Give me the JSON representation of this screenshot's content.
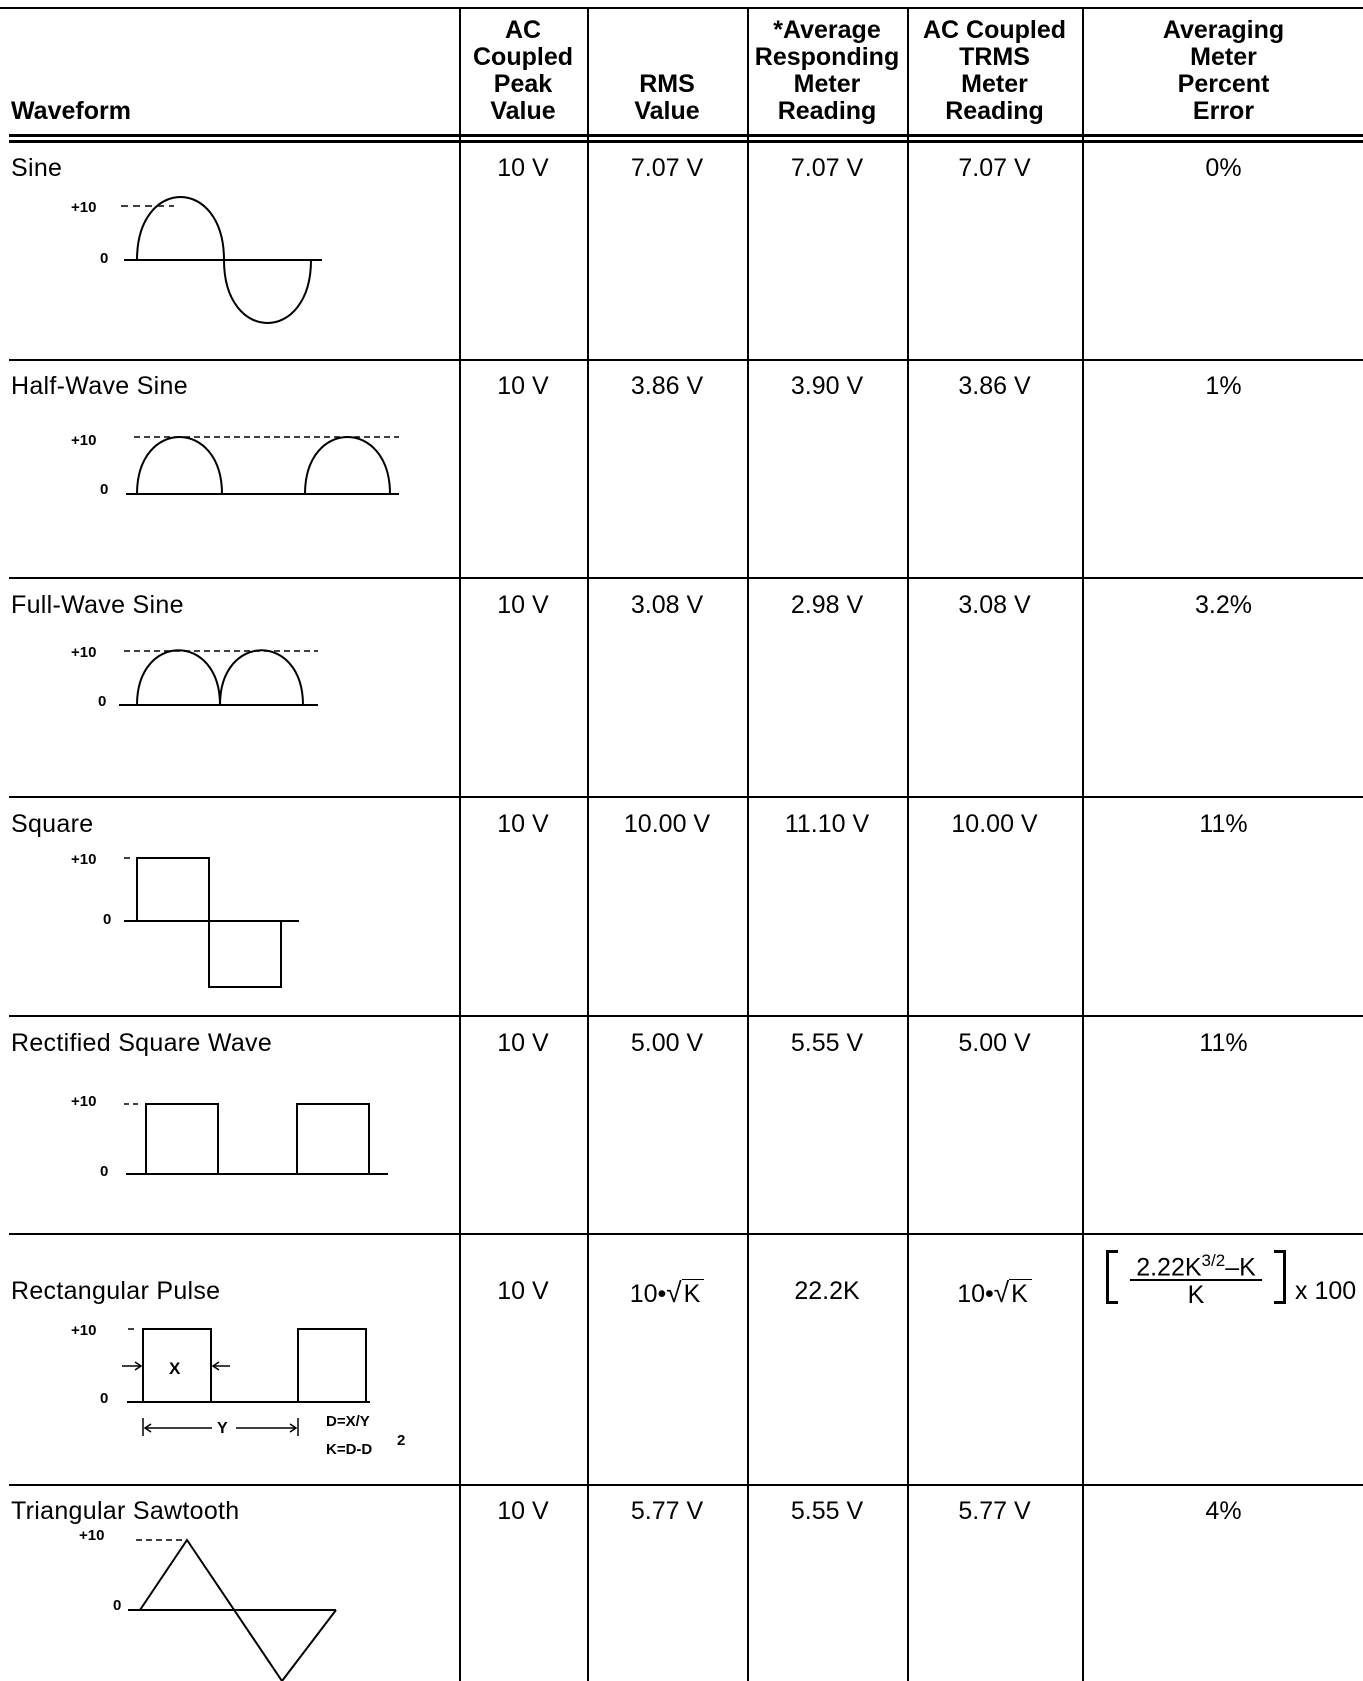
{
  "headers": {
    "waveform": "Waveform",
    "peak": [
      "AC",
      "Coupled",
      "Peak",
      "Value"
    ],
    "rms": [
      "RMS",
      "Value"
    ],
    "avg": [
      "*Average",
      "Responding",
      "Meter",
      "Reading"
    ],
    "trms": [
      "AC Coupled",
      "TRMS",
      "Meter",
      "Reading"
    ],
    "error": [
      "Averaging",
      "Meter",
      "Percent",
      "Error"
    ]
  },
  "axis": {
    "plus10": "+10",
    "zero": "0"
  },
  "rows": [
    {
      "name": "Sine",
      "peak": "10 V",
      "rms": "7.07 V",
      "avg": "7.07 V",
      "trms": "7.07 V",
      "error": "0%"
    },
    {
      "name": "Half-Wave Sine",
      "peak": "10 V",
      "rms": "3.86 V",
      "avg": "3.90 V",
      "trms": "3.86 V",
      "error": "1%"
    },
    {
      "name": "Full-Wave Sine",
      "peak": "10 V",
      "rms": "3.08 V",
      "avg": "2.98 V",
      "trms": "3.08 V",
      "error": "3.2%"
    },
    {
      "name": "Square",
      "peak": "10 V",
      "rms": "10.00 V",
      "avg": "11.10 V",
      "trms": "10.00 V",
      "error": "11%"
    },
    {
      "name": "Rectified Square Wave",
      "peak": "10 V",
      "rms": "5.00 V",
      "avg": "5.55 V",
      "trms": "5.00 V",
      "error": "11%"
    },
    {
      "name": "Rectangular Pulse",
      "peak": "10 V",
      "rms_prefix": "10•",
      "rms_radicand": "K",
      "avg": "22.2K",
      "trms_prefix": "10•",
      "trms_radicand": "K",
      "error_numerator": "2.22K",
      "error_exponent": "3/2",
      "error_numerator_tail": "–K",
      "error_denominator": "K",
      "error_multiplier": "x 100",
      "labels": {
        "x": "X",
        "y": "Y",
        "d": "D=X/Y",
        "k": "K=D-D",
        "k_exp": "2"
      }
    },
    {
      "name": "Triangular Sawtooth",
      "peak": "10 V",
      "rms": "5.77 V",
      "avg": "5.55 V",
      "trms": "5.77 V",
      "error": "4%"
    }
  ]
}
